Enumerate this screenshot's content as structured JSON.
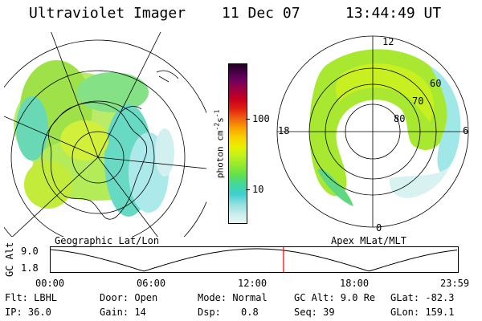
{
  "header": {
    "instrument": "Ultraviolet Imager",
    "date": "11 Dec 07",
    "time": "13:44:49 UT"
  },
  "left_panel": {
    "caption": "Geographic Lat/Lon"
  },
  "right_panel": {
    "caption": "Apex MLat/MLT",
    "mlt_labels": {
      "top": "12",
      "left": "18",
      "right": "6",
      "bottom": "0"
    },
    "lat_labels": [
      "60",
      "70",
      "80"
    ]
  },
  "colorbar": {
    "unit_label": "photon cm",
    "unit_sup1": "-2",
    "unit_mid": "s",
    "unit_sup2": "-1",
    "ticks": [
      "100",
      "10"
    ],
    "colors": [
      "#e8f6f6",
      "#c8ecec",
      "#90e0e0",
      "#40d0d0",
      "#40d8a0",
      "#60e050",
      "#90e830",
      "#c0f020",
      "#e8f000",
      "#f8d000",
      "#f8a000",
      "#f06010",
      "#e02010",
      "#c80020",
      "#a00040",
      "#700060",
      "#400040"
    ]
  },
  "timeline": {
    "y_label": "GC Alt",
    "y_ticks": [
      "9.0",
      "1.8"
    ],
    "x_ticks": [
      "00:00",
      "06:00",
      "12:00",
      "18:00",
      "23:59"
    ],
    "marker_hours": 13.75,
    "curve_color": "#000000",
    "marker_color": "#ff0000"
  },
  "status": {
    "row1": {
      "flt": "Flt: LBHL",
      "door": "Door: Open",
      "mode": "Mode: Normal",
      "gcalt": "GC Alt: 9.0 Re",
      "glat": "GLat: -82.3"
    },
    "row2": {
      "ip": "IP: 36.0",
      "gain": "Gain: 14",
      "dsp_label": "Dsp:",
      "dsp_value": "0.8",
      "seq": "Seq: 39",
      "glon": "GLon: 159.1"
    }
  }
}
